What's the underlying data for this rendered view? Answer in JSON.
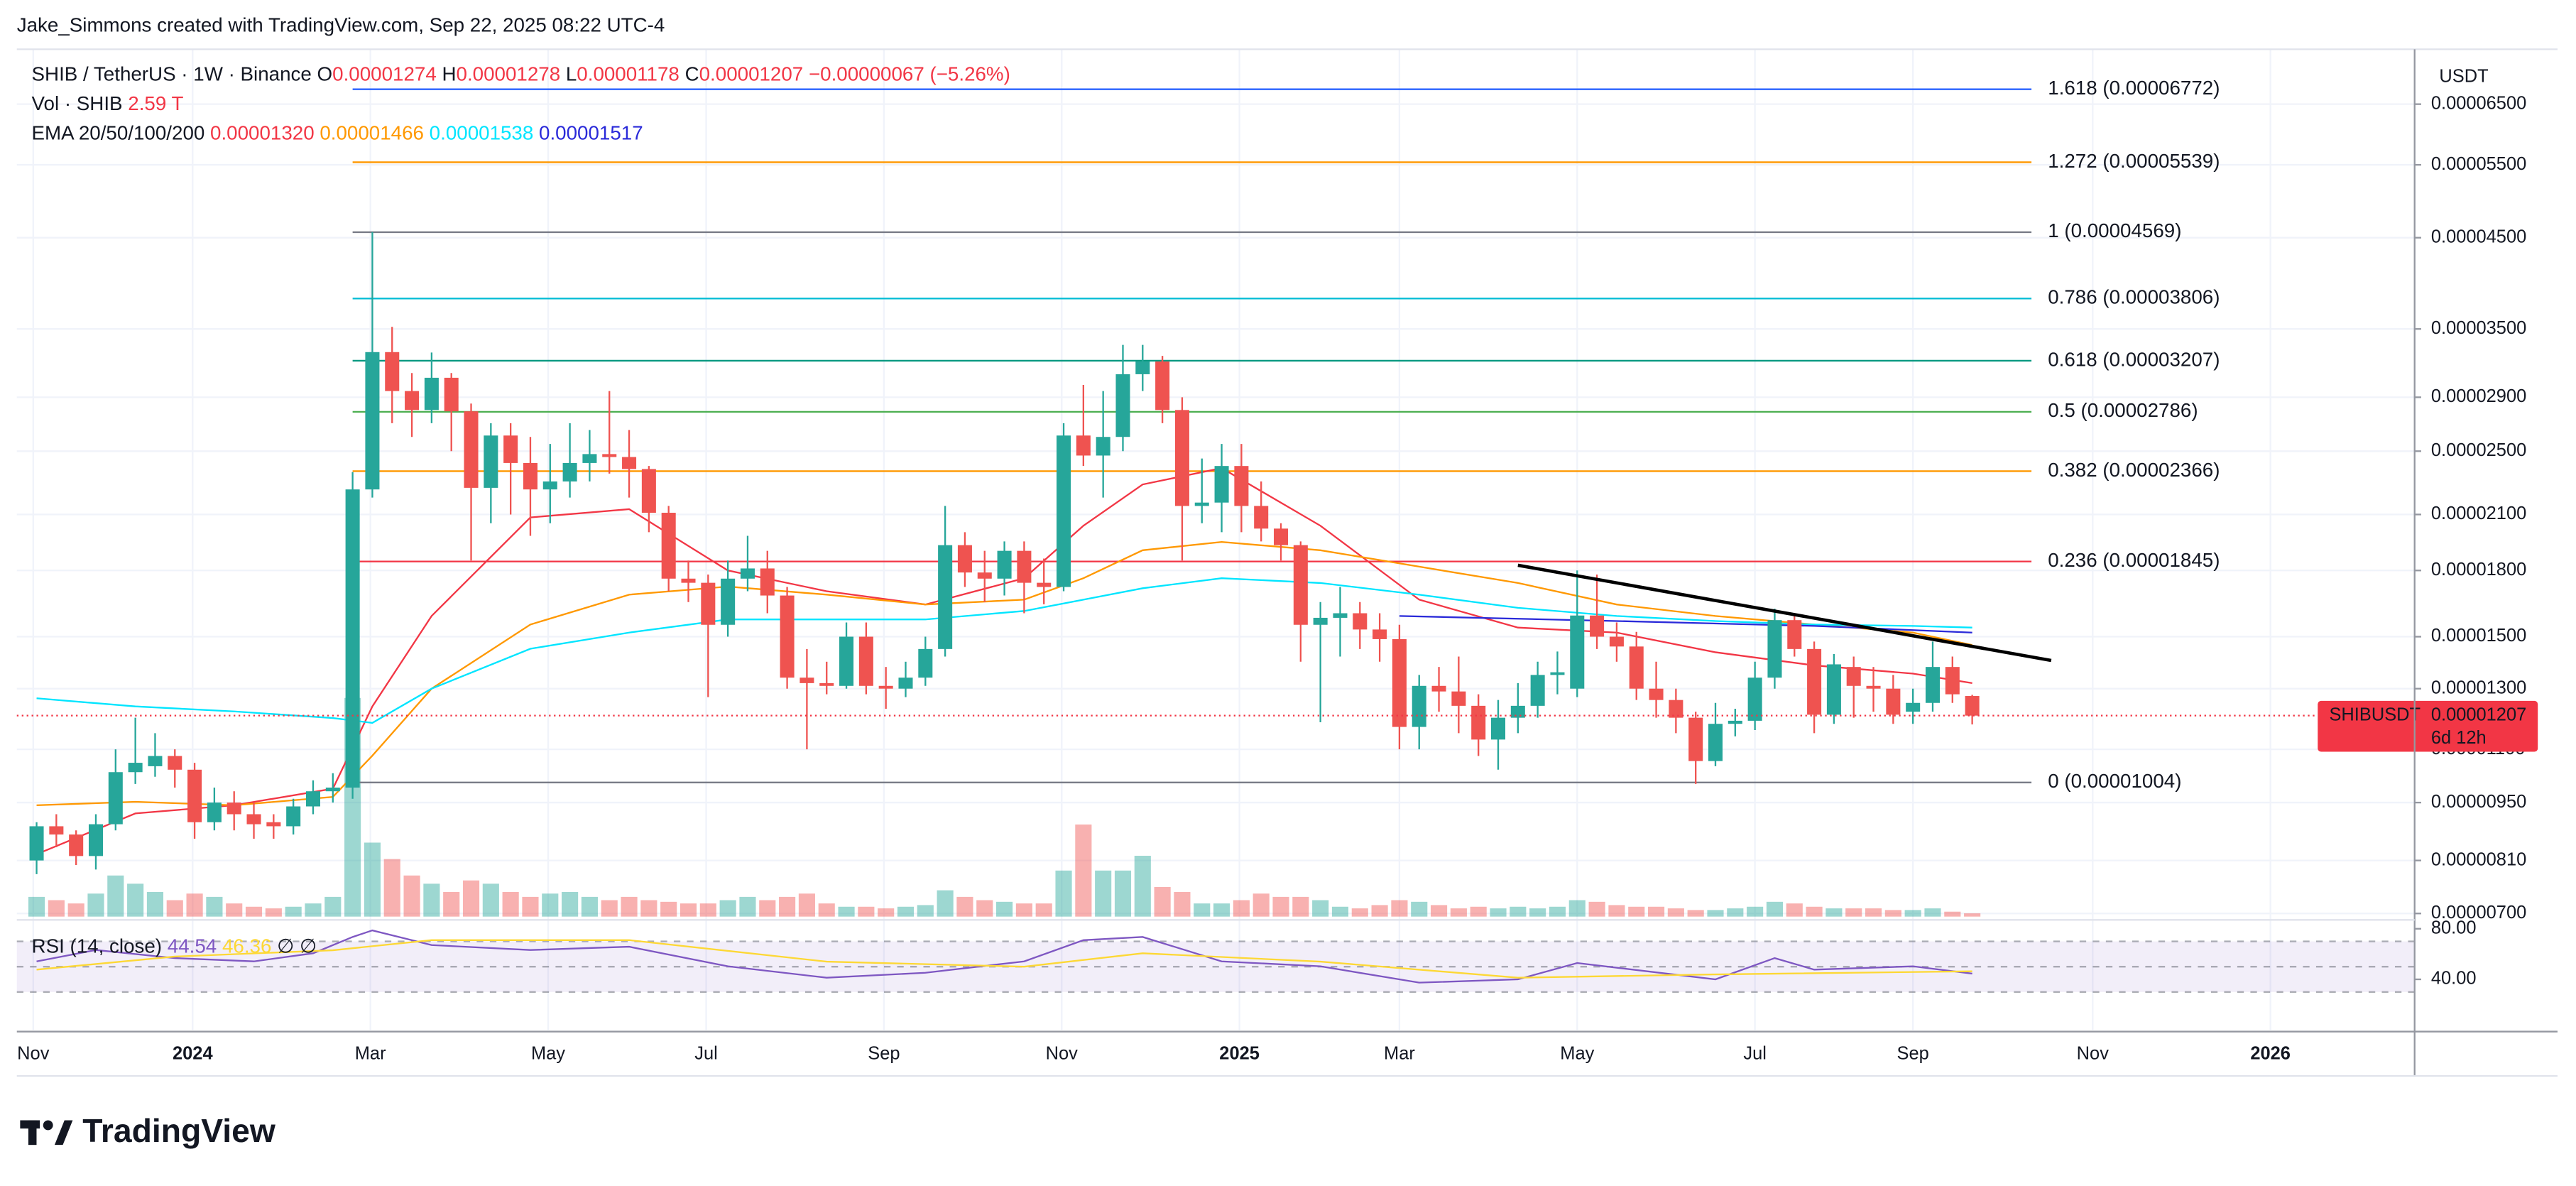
{
  "chart_data": {
    "type": "candlestick",
    "attribution": "Jake_Simmons created with TradingView.com, Sep 22, 2025 08:22 UTC-4",
    "title": "SHIB / TetherUS · 1W · Binance",
    "ohlc_letters": [
      "O",
      "H",
      "L",
      "C"
    ],
    "change_label": "−0.00000067 (−5.26%)",
    "currency": "USDT",
    "logo": "TradingView",
    "log_scale": true,
    "grid": true,
    "up_color": "#26a69a",
    "down_color": "#ef5350",
    "categories": [
      null,
      null,
      null,
      null,
      null,
      null,
      null,
      null,
      null,
      null,
      null,
      null,
      null,
      null,
      null,
      null,
      null,
      null,
      null,
      null,
      null,
      null,
      null,
      null,
      null,
      null,
      null,
      null,
      null,
      null,
      null,
      null,
      null,
      null,
      null,
      null,
      null,
      null,
      null,
      null,
      null,
      null,
      null,
      null,
      null,
      null,
      null,
      null,
      null,
      null,
      null,
      null,
      null,
      null,
      null,
      null,
      null,
      null,
      null,
      null,
      null,
      null,
      null,
      null,
      null,
      null,
      null,
      null,
      null,
      null,
      null,
      null,
      null,
      null,
      null,
      null,
      null,
      null,
      null,
      null,
      null,
      null,
      null,
      null,
      null,
      null,
      null,
      null,
      null,
      null,
      null,
      null,
      null,
      null,
      null,
      null,
      null,
      null,
      null
    ],
    "xlim": [
      -1,
      120.4
    ],
    "xticks": [
      {
        "value": -0.17,
        "label": "Nov"
      },
      {
        "value": 7.9,
        "label": "2024"
      },
      {
        "value": 16.9,
        "label": "Mar"
      },
      {
        "value": 25.9,
        "label": "May"
      },
      {
        "value": 33.9,
        "label": "Jul"
      },
      {
        "value": 42.9,
        "label": "Sep"
      },
      {
        "value": 51.9,
        "label": "Nov"
      },
      {
        "value": 60.9,
        "label": "2025"
      },
      {
        "value": 69.0,
        "label": "Mar"
      },
      {
        "value": 78.0,
        "label": "May"
      },
      {
        "value": 87.0,
        "label": "Jul"
      },
      {
        "value": 95.0,
        "label": "Sep"
      },
      {
        "value": 104.1,
        "label": "Nov"
      },
      {
        "value": 113.1,
        "label": "2026"
      }
    ],
    "ylim": [
      6.94e-06,
      7.56e-05
    ],
    "yticks": [
      {
        "value": 7e-06,
        "label": "0.00000700"
      },
      {
        "value": 8.1e-06,
        "label": "0.00000810"
      },
      {
        "value": 9.5e-06,
        "label": "0.00000950"
      },
      {
        "value": 1.1e-05,
        "label": "0.00001100"
      },
      {
        "value": 1.3e-05,
        "label": "0.00001300"
      },
      {
        "value": 1.5e-05,
        "label": "0.00001500"
      },
      {
        "value": 1.8e-05,
        "label": "0.00001800"
      },
      {
        "value": 2.1e-05,
        "label": "0.00002100"
      },
      {
        "value": 2.5e-05,
        "label": "0.00002500"
      },
      {
        "value": 2.9e-05,
        "label": "0.00002900"
      },
      {
        "value": 3.5e-05,
        "label": "0.00003500"
      },
      {
        "value": 4.5e-05,
        "label": "0.00004500"
      },
      {
        "value": 5.5e-05,
        "label": "0.00005500"
      },
      {
        "value": 6.5e-05,
        "label": "0.00006500"
      }
    ],
    "open": [
      8.1e-06,
      8.9e-06,
      8.7e-06,
      8.2e-06,
      8.95e-06,
      1.033e-05,
      1.05e-05,
      1.08e-05,
      1.04e-05,
      9e-06,
      9.5e-06,
      9.2e-06,
      9e-06,
      8.9e-06,
      9.4e-06,
      9.8e-06,
      9.9e-06,
      2.25e-05,
      3.284e-05,
      2.95e-05,
      2.8e-05,
      3.06e-05,
      2.79e-05,
      2.26e-05,
      2.61e-05,
      2.42e-05,
      2.25e-05,
      2.3e-05,
      2.42e-05,
      2.48e-05,
      2.46e-05,
      2.38e-05,
      2.11e-05,
      1.76e-05,
      1.74e-05,
      1.55e-05,
      1.76e-05,
      1.81e-05,
      1.68e-05,
      1.34e-05,
      1.32e-05,
      1.31e-05,
      1.5e-05,
      1.31e-05,
      1.3e-05,
      1.34e-05,
      1.45e-05,
      1.93e-05,
      1.79e-05,
      1.76e-05,
      1.9e-05,
      1.74e-05,
      1.72e-05,
      2.61e-05,
      2.47e-05,
      2.6e-05,
      3.09e-05,
      3.2e-05,
      2.8e-05,
      2.15e-05,
      2.17e-05,
      2.4e-05,
      2.15e-05,
      2.02e-05,
      1.93e-05,
      1.55e-05,
      1.58e-05,
      1.6e-05,
      1.53e-05,
      1.49e-05,
      1.17e-05,
      1.31e-05,
      1.29e-05,
      1.24e-05,
      1.13e-05,
      1.2e-05,
      1.24e-05,
      1.35e-05,
      1.3e-05,
      1.59e-05,
      1.5e-05,
      1.46e-05,
      1.3e-05,
      1.26e-05,
      1.2e-05,
      1.065e-05,
      1.18e-05,
      1.19e-05,
      1.34e-05,
      1.57e-05,
      1.45e-05,
      1.21e-05,
      1.38e-05,
      1.31e-05,
      1.3e-05,
      1.22e-05,
      1.25e-05,
      1.38e-05,
      1.274e-05
    ],
    "high": [
      9e-06,
      9.2e-06,
      8.8e-06,
      9.2e-06,
      1.1e-05,
      1.2e-05,
      1.15e-05,
      1.1e-05,
      1.06e-05,
      9.9e-06,
      9.8e-06,
      9.5e-06,
      9.2e-06,
      9.6e-06,
      1.01e-05,
      1.03e-05,
      2.36e-05,
      4.569e-05,
      3.52e-05,
      3.1e-05,
      3.28e-05,
      3.1e-05,
      2.85e-05,
      2.7e-05,
      2.7e-05,
      2.6e-05,
      2.55e-05,
      2.7e-05,
      2.65e-05,
      2.95e-05,
      2.65e-05,
      2.4e-05,
      2.15e-05,
      1.85e-05,
      1.78e-05,
      1.85e-05,
      1.98e-05,
      1.9e-05,
      1.72e-05,
      1.45e-05,
      1.4e-05,
      1.56e-05,
      1.56e-05,
      1.38e-05,
      1.4e-05,
      1.5e-05,
      2.15e-05,
      2e-05,
      1.9e-05,
      1.95e-05,
      1.95e-05,
      1.86e-05,
      2.7e-05,
      3e-05,
      2.95e-05,
      3.35e-05,
      3.35e-05,
      3.25e-05,
      2.9e-05,
      2.45e-05,
      2.55e-05,
      2.55e-05,
      2.3e-05,
      2.05e-05,
      1.95e-05,
      1.65e-05,
      1.72e-05,
      1.65e-05,
      1.6e-05,
      1.55e-05,
      1.35e-05,
      1.38e-05,
      1.42e-05,
      1.28e-05,
      1.26e-05,
      1.32e-05,
      1.4e-05,
      1.44e-05,
      1.8e-05,
      1.78e-05,
      1.56e-05,
      1.52e-05,
      1.4e-05,
      1.3e-05,
      1.22e-05,
      1.25e-05,
      1.23e-05,
      1.4e-05,
      1.62e-05,
      1.6e-05,
      1.48e-05,
      1.43e-05,
      1.42e-05,
      1.38e-05,
      1.35e-05,
      1.3e-05,
      1.48e-05,
      1.42e-05,
      1.278e-05
    ],
    "low": [
      7.8e-06,
      8.4e-06,
      8e-06,
      7.9e-06,
      8.8e-06,
      1e-05,
      1.02e-05,
      9.9e-06,
      8.6e-06,
      8.8e-06,
      8.8e-06,
      8.6e-06,
      8.6e-06,
      8.7e-06,
      9.2e-06,
      9.5e-06,
      9.6e-06,
      2.2e-05,
      2.7e-05,
      2.6e-05,
      2.7e-05,
      2.5e-05,
      1.85e-05,
      2.05e-05,
      2.1e-05,
      1.98e-05,
      2.05e-05,
      2.2e-05,
      2.3e-05,
      2.35e-05,
      2.2e-05,
      2e-05,
      1.7e-05,
      1.65e-05,
      1.27e-05,
      1.5e-05,
      1.7e-05,
      1.6e-05,
      1.3e-05,
      1.1e-05,
      1.28e-05,
      1.3e-05,
      1.28e-05,
      1.23e-05,
      1.27e-05,
      1.31e-05,
      1.42e-05,
      1.72e-05,
      1.65e-05,
      1.68e-05,
      1.6e-05,
      1.64e-05,
      1.7e-05,
      2.4e-05,
      2.2e-05,
      2.5e-05,
      2.95e-05,
      2.7e-05,
      1.85e-05,
      2.05e-05,
      2e-05,
      2e-05,
      1.95e-05,
      1.85e-05,
      1.4e-05,
      1.185e-05,
      1.42e-05,
      1.45e-05,
      1.4e-05,
      1.1e-05,
      1.1e-05,
      1.22e-05,
      1.15e-05,
      1.08e-05,
      1.04e-05,
      1.15e-05,
      1.2e-05,
      1.28e-05,
      1.27e-05,
      1.45e-05,
      1.4e-05,
      1.26e-05,
      1.2e-05,
      1.15e-05,
      1e-05,
      1.05e-05,
      1.14e-05,
      1.16e-05,
      1.3e-05,
      1.42e-05,
      1.15e-05,
      1.18e-05,
      1.2e-05,
      1.22e-05,
      1.18e-05,
      1.18e-05,
      1.22e-05,
      1.25e-05,
      1.178e-05
    ],
    "close": [
      8.9e-06,
      8.7e-06,
      8.2e-06,
      8.95e-06,
      1.033e-05,
      1.06e-05,
      1.08e-05,
      1.04e-05,
      9e-06,
      9.5e-06,
      9.2e-06,
      8.95e-06,
      8.9e-06,
      9.4e-06,
      9.8e-06,
      9.9e-06,
      2.25e-05,
      3.284e-05,
      2.95e-05,
      2.8e-05,
      3.06e-05,
      2.79e-05,
      2.26e-05,
      2.61e-05,
      2.42e-05,
      2.25e-05,
      2.3e-05,
      2.42e-05,
      2.48e-05,
      2.46e-05,
      2.38e-05,
      2.11e-05,
      1.76e-05,
      1.74e-05,
      1.55e-05,
      1.76e-05,
      1.81e-05,
      1.68e-05,
      1.34e-05,
      1.32e-05,
      1.31e-05,
      1.5e-05,
      1.31e-05,
      1.3e-05,
      1.34e-05,
      1.45e-05,
      1.93e-05,
      1.79e-05,
      1.76e-05,
      1.9e-05,
      1.74e-05,
      1.72e-05,
      2.61e-05,
      2.47e-05,
      2.6e-05,
      3.09e-05,
      3.2e-05,
      2.8e-05,
      2.15e-05,
      2.17e-05,
      2.4e-05,
      2.15e-05,
      2.02e-05,
      1.93e-05,
      1.55e-05,
      1.58e-05,
      1.6e-05,
      1.53e-05,
      1.49e-05,
      1.17e-05,
      1.31e-05,
      1.29e-05,
      1.24e-05,
      1.13e-05,
      1.2e-05,
      1.24e-05,
      1.35e-05,
      1.36e-05,
      1.59e-05,
      1.5e-05,
      1.46e-05,
      1.3e-05,
      1.26e-05,
      1.2e-05,
      1.065e-05,
      1.18e-05,
      1.19e-05,
      1.34e-05,
      1.57e-05,
      1.45e-05,
      1.21e-05,
      1.39e-05,
      1.31e-05,
      1.3e-05,
      1.21e-05,
      1.25e-05,
      1.38e-05,
      1.28e-05,
      1.207e-05
    ],
    "volume": {
      "title": "Vol · SHIB",
      "last_label": "2.59 T",
      "lim": [
        0,
        200
      ],
      "values": [
        15.6,
        13,
        10.4,
        18.2,
        32.5,
        26,
        19.5,
        13,
        18.2,
        15.6,
        10.4,
        7.8,
        6.5,
        7.8,
        10.4,
        15.6,
        172.9,
        58.5,
        45.5,
        32.5,
        26,
        19.5,
        28.6,
        26,
        19.5,
        15.6,
        18.2,
        19.5,
        15.6,
        13,
        15.6,
        13,
        11.7,
        10.4,
        10.4,
        13,
        15.6,
        13,
        15.6,
        18.2,
        10.4,
        7.8,
        7.8,
        6.5,
        7.8,
        9.1,
        20.8,
        15.6,
        13,
        11.7,
        10.4,
        10.4,
        36.4,
        72.8,
        36.4,
        36.4,
        48.1,
        23.4,
        19.5,
        10.4,
        10.4,
        13,
        18.2,
        15.6,
        15.6,
        13,
        7.8,
        6.5,
        9.1,
        13,
        11.7,
        9.1,
        6.5,
        7.8,
        6.5,
        7.8,
        6.5,
        7.8,
        13,
        11.7,
        9.1,
        7.8,
        7.8,
        6.5,
        5.2,
        5.2,
        6.5,
        7.8,
        11.7,
        10.4,
        7.8,
        6.5,
        6.5,
        6.5,
        5.2,
        5.2,
        6.5,
        3.9,
        2.59
      ]
    },
    "ema": {
      "title": "EMA 20/50/100/200",
      "series": [
        {
          "color": "#f23645",
          "last_label": "0.00001320",
          "x": [
            0,
            5,
            10,
            15,
            17,
            20,
            25,
            30,
            35,
            40,
            45,
            50,
            53,
            56,
            60,
            65,
            70,
            75,
            80,
            85,
            90,
            95,
            98
          ],
          "values": [
            8.24e-06,
            9.22e-06,
            9.43e-06,
            9.87e-06,
            1.238e-05,
            1.588e-05,
            2.083e-05,
            2.131e-05,
            1.8e-05,
            1.7e-05,
            1.639e-05,
            1.762e-05,
            2.036e-05,
            2.281e-05,
            2.386e-05,
            2.036e-05,
            1.661e-05,
            1.538e-05,
            1.517e-05,
            1.437e-05,
            1.386e-05,
            1.355e-05,
            1.32e-05
          ]
        },
        {
          "color": "#ff9800",
          "last_label": "0.00001466",
          "x": [
            0,
            5,
            10,
            15,
            17,
            20,
            25,
            30,
            35,
            40,
            45,
            50,
            53,
            56,
            60,
            65,
            70,
            75,
            80,
            85,
            90,
            95,
            98
          ],
          "values": [
            9.43e-06,
            9.52e-06,
            9.43e-06,
            9.65e-06,
            1.081e-05,
            1.3e-05,
            1.551e-05,
            1.684e-05,
            1.722e-05,
            1.684e-05,
            1.639e-05,
            1.661e-05,
            1.762e-05,
            1.903e-05,
            1.947e-05,
            1.903e-05,
            1.819e-05,
            1.739e-05,
            1.639e-05,
            1.588e-05,
            1.551e-05,
            1.517e-05,
            1.466e-05
          ]
        },
        {
          "color": "#00e5ff",
          "last_label": "0.00001538",
          "x": [
            0,
            5,
            10,
            15,
            17,
            20,
            25,
            30,
            35,
            40,
            45,
            50,
            53,
            56,
            60,
            65,
            70,
            75,
            80,
            85,
            90,
            95,
            98
          ],
          "values": [
            1.266e-05,
            1.238e-05,
            1.221e-05,
            1.199e-05,
            1.183e-05,
            1.3e-05,
            1.451e-05,
            1.517e-05,
            1.573e-05,
            1.573e-05,
            1.573e-05,
            1.61e-05,
            1.661e-05,
            1.714e-05,
            1.762e-05,
            1.739e-05,
            1.684e-05,
            1.624e-05,
            1.588e-05,
            1.566e-05,
            1.551e-05,
            1.545e-05,
            1.538e-05
          ]
        },
        {
          "color": "#2a2ad9",
          "last_label": "0.00001517",
          "x": [
            69,
            80,
            90,
            98
          ],
          "values": [
            1.588e-05,
            1.566e-05,
            1.545e-05,
            1.517e-05
          ]
        }
      ]
    },
    "fib": {
      "x_range": [
        16,
        101
      ],
      "levels": [
        {
          "value": 6.772e-05,
          "label": "1.618 (0.00006772)",
          "color": "#2962ff"
        },
        {
          "value": 5.539e-05,
          "label": "1.272 (0.00005539)",
          "color": "#ff9800"
        },
        {
          "value": 4.569e-05,
          "label": "1 (0.00004569)",
          "color": "#787b86"
        },
        {
          "value": 3.806e-05,
          "label": "0.786 (0.00003806)",
          "color": "#00bcd4"
        },
        {
          "value": 3.207e-05,
          "label": "0.618 (0.00003207)",
          "color": "#089981"
        },
        {
          "value": 2.786e-05,
          "label": "0.5 (0.00002786)",
          "color": "#4caf50"
        },
        {
          "value": 2.366e-05,
          "label": "0.382 (0.00002366)",
          "color": "#ff9800"
        },
        {
          "value": 1.845e-05,
          "label": "0.236 (0.00001845)",
          "color": "#f23645"
        },
        {
          "value": 1.004e-05,
          "label": "0 (0.00001004)",
          "color": "#787b86"
        }
      ]
    },
    "trendline": {
      "x": [
        75,
        102
      ],
      "values": [
        1.826e-05,
        1.405e-05
      ],
      "color": "#000000"
    },
    "price_tag": {
      "symbol": "SHIBUSDT",
      "countdown": "6d 12h",
      "color": "#f23645"
    },
    "rsi": {
      "title": "RSI (14, close)",
      "extra": "∅ ∅",
      "ylim": [
        0,
        87
      ],
      "bands": [
        70,
        50,
        30
      ],
      "yticks": [
        {
          "value": 80,
          "label": "80.00"
        },
        {
          "value": 40,
          "label": "40.00"
        }
      ],
      "series": [
        {
          "color": "#7e57c2",
          "last_label": "44.54",
          "x": [
            0,
            3,
            7,
            11,
            14,
            16,
            17,
            20,
            25,
            30,
            35,
            40,
            45,
            50,
            53,
            56,
            60,
            65,
            70,
            75,
            78,
            85,
            88,
            90,
            95,
            98
          ],
          "values": [
            54.2,
            63.2,
            56.8,
            54.2,
            60.6,
            73.5,
            78.7,
            67.1,
            63.2,
            65.8,
            50.3,
            41.3,
            45.2,
            54.2,
            71,
            73.5,
            54.2,
            50.3,
            37.4,
            40,
            52.9,
            40,
            56.8,
            47.7,
            50.3,
            44.54
          ]
        },
        {
          "color": "#fdd835",
          "last_label": "46.36",
          "x": [
            0,
            7,
            15,
            20,
            30,
            40,
            50,
            56,
            65,
            75,
            85,
            98
          ],
          "values": [
            47.7,
            58,
            63,
            71,
            71,
            54,
            50,
            60.6,
            54,
            41.3,
            43.9,
            46.36
          ]
        }
      ]
    }
  }
}
